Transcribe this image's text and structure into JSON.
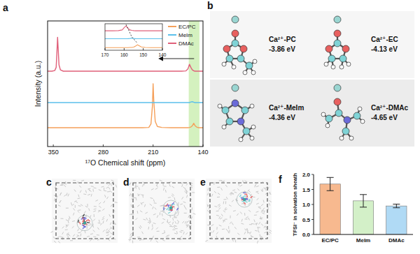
{
  "panel_labels": [
    "a",
    "b",
    "c",
    "d",
    "e",
    "f"
  ],
  "chart_data": [
    {
      "type": "line",
      "x_label": "¹⁷O Chemical shift (ppm)",
      "y_label": "Intensity (a.u.)",
      "x": [
        358,
        352,
        348,
        346,
        345,
        344,
        343,
        342,
        340,
        336,
        320,
        300,
        280,
        260,
        240,
        225,
        216,
        213,
        211,
        210,
        209,
        207,
        204,
        198,
        185,
        170,
        164,
        161,
        159,
        157,
        155,
        153,
        151,
        149,
        146,
        143,
        140
      ],
      "series": [
        {
          "name": "EC/PC",
          "color": "#f5a05a",
          "values": [
            1.5,
            1.5,
            1.5,
            1.5,
            1.5,
            1.5,
            1.5,
            1.5,
            1.5,
            1.5,
            1.5,
            1.5,
            1.5,
            1.5,
            1.5,
            1.5,
            1.52,
            1.8,
            3.2,
            5.0,
            3.6,
            2.0,
            1.6,
            1.52,
            1.5,
            1.5,
            1.5,
            1.5,
            1.52,
            1.55,
            1.65,
            1.85,
            1.65,
            1.55,
            1.5,
            1.5,
            1.5
          ]
        },
        {
          "name": "MeIm",
          "color": "#5bc0eb",
          "values": [
            3.5,
            3.5,
            3.5,
            3.5,
            3.5,
            3.5,
            3.5,
            3.5,
            3.5,
            3.5,
            3.5,
            3.5,
            3.5,
            3.5,
            3.5,
            3.5,
            3.5,
            3.5,
            3.5,
            3.5,
            3.5,
            3.5,
            3.5,
            3.5,
            3.5,
            3.5,
            3.5,
            3.5,
            3.5,
            3.55,
            3.57,
            3.53,
            3.5,
            3.5,
            3.5,
            3.5,
            3.5
          ]
        },
        {
          "name": "DMAc",
          "color": "#e0607a",
          "values": [
            6.0,
            6.0,
            6.05,
            6.3,
            7.4,
            8.7,
            7.6,
            6.5,
            6.1,
            6.0,
            6.0,
            6.0,
            6.0,
            6.0,
            6.0,
            6.0,
            6.0,
            6.0,
            6.0,
            6.0,
            6.0,
            6.0,
            6.0,
            6.0,
            6.0,
            6.0,
            6.02,
            6.2,
            6.55,
            6.3,
            6.1,
            6.03,
            6.0,
            6.0,
            6.0,
            6.0,
            6.0
          ]
        }
      ],
      "xlim": [
        358,
        140
      ],
      "xticks": [
        350,
        280,
        210,
        140
      ],
      "ylim": [
        0,
        10
      ],
      "tick_labels": "x",
      "legend": "upper right",
      "highlight_range": [
        160,
        145
      ]
    },
    {
      "type": "line",
      "x": [
        170,
        166,
        163,
        161,
        160,
        159,
        158,
        157,
        156,
        155,
        154,
        153,
        152,
        151,
        149,
        146,
        143,
        140
      ],
      "series": [
        {
          "color": "#f5a05a",
          "values": [
            0.3,
            0.3,
            0.3,
            0.3,
            0.3,
            0.3,
            0.3,
            0.31,
            0.32,
            0.36,
            0.48,
            0.62,
            0.5,
            0.38,
            0.32,
            0.3,
            0.3,
            0.3
          ]
        },
        {
          "color": "#5bc0eb",
          "values": [
            1.3,
            1.3,
            1.3,
            1.3,
            1.3,
            1.3,
            1.31,
            1.33,
            1.36,
            1.33,
            1.31,
            1.3,
            1.3,
            1.3,
            1.3,
            1.3,
            1.3,
            1.3
          ]
        },
        {
          "color": "#e0607a",
          "values": [
            2.2,
            2.2,
            2.22,
            2.3,
            2.55,
            2.75,
            2.5,
            2.3,
            2.25,
            2.22,
            2.2,
            2.2,
            2.2,
            2.2,
            2.2,
            2.2,
            2.2,
            2.2
          ]
        }
      ],
      "xlim": [
        170,
        140
      ],
      "xticks": [
        170,
        160,
        150,
        140
      ],
      "ylim": [
        0,
        3
      ],
      "tick_labels": "x"
    },
    {
      "type": "bar",
      "y_label": "TFSI⁻ in solvation sheath",
      "categories": [
        "EC/PC",
        "MeIm",
        "DMAc"
      ],
      "values": [
        1.68,
        1.12,
        0.95
      ],
      "errors": [
        0.22,
        0.21,
        0.06
      ],
      "colors": [
        "#f7b98f",
        "#d3f0c8",
        "#b0daf5"
      ],
      "ylim": [
        0,
        2.0
      ],
      "yticks": [
        {
          "value": 0,
          "label": "0.0"
        },
        {
          "value": 0.5,
          "label": "0.5"
        },
        {
          "value": 1.0,
          "label": "1.0"
        },
        {
          "value": 1.5,
          "label": "1.5"
        },
        {
          "value": 2.0,
          "label": "2.0"
        }
      ]
    }
  ],
  "panel_b": {
    "complexes": [
      {
        "label": "Ca²⁺-PC",
        "energy": "-3.86 eV"
      },
      {
        "label": "Ca²⁺-EC",
        "energy": "-4.13 eV"
      },
      {
        "label": "Ca²⁺-MeIm",
        "energy": "-4.36 eV"
      },
      {
        "label": "Ca²⁺-DMAc",
        "energy": "-4.65 eV"
      }
    ]
  }
}
